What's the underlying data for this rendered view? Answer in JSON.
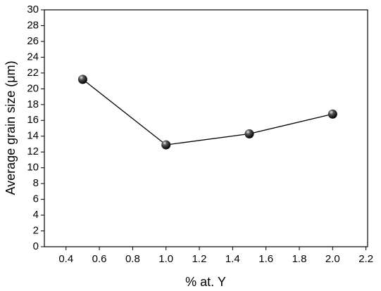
{
  "chart_data": {
    "type": "line",
    "x_label": "% at. Y",
    "y_label": "Average grain size (μm)",
    "x": [
      0.5,
      1.0,
      1.5,
      2.0
    ],
    "series": [
      {
        "color": "#000000",
        "values": [
          21.2,
          12.9,
          14.3,
          16.8
        ]
      }
    ],
    "xlim": [
      0.27,
      2.21
    ],
    "xticks": [
      0.4,
      0.6,
      0.8,
      {
        "value": 1,
        "label": "1.0"
      },
      1.2,
      1.4,
      1.6,
      1.8,
      {
        "value": 2,
        "label": "2.0"
      },
      2.2
    ],
    "ylim": [
      0,
      30
    ],
    "yticks": [
      0,
      2,
      4,
      6,
      8,
      10,
      12,
      14,
      16,
      18,
      20,
      22,
      24,
      26,
      28,
      30
    ],
    "grid": false
  }
}
